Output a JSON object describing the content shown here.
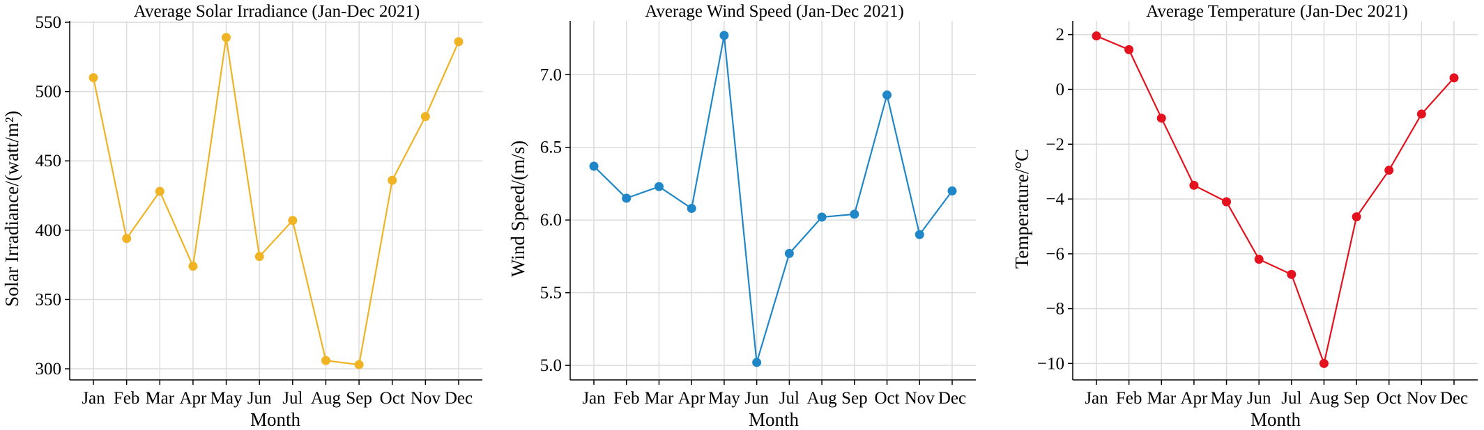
{
  "chart_data": [
    {
      "type": "line",
      "title": "Average Solar Irradiance (Jan-Dec 2021)",
      "xlabel": "Month",
      "ylabel": "Solar Irradiance/(watt/m²)",
      "categories": [
        "Jan",
        "Feb",
        "Mar",
        "Apr",
        "May",
        "Jun",
        "Jul",
        "Aug",
        "Sep",
        "Oct",
        "Nov",
        "Dec"
      ],
      "series": [
        {
          "values": [
            510,
            394,
            428,
            374,
            539,
            381,
            407,
            306,
            303,
            436,
            482,
            536
          ],
          "color": "#f0b323"
        }
      ],
      "ylim": [
        292,
        551
      ],
      "yticks": [
        300,
        350,
        400,
        450,
        500,
        550
      ],
      "ytick_labels": [
        "300",
        "350",
        "400",
        "450",
        "500",
        "550"
      ],
      "grid": true,
      "marker": "circle"
    },
    {
      "type": "line",
      "title": "Average Wind Speed (Jan-Dec 2021)",
      "xlabel": "Month",
      "ylabel": "Wind Speed/(m/s)",
      "categories": [
        "Jan",
        "Feb",
        "Mar",
        "Apr",
        "May",
        "Jun",
        "Jul",
        "Aug",
        "Sep",
        "Oct",
        "Nov",
        "Dec"
      ],
      "series": [
        {
          "values": [
            6.37,
            6.15,
            6.23,
            6.08,
            7.27,
            5.02,
            5.77,
            6.02,
            6.04,
            6.86,
            5.9,
            6.2
          ],
          "color": "#1f87c8"
        }
      ],
      "ylim": [
        4.9,
        7.37
      ],
      "yticks": [
        5.0,
        5.5,
        6.0,
        6.5,
        7.0
      ],
      "ytick_labels": [
        "5.0",
        "5.5",
        "6.0",
        "6.5",
        "7.0"
      ],
      "grid": true,
      "marker": "circle"
    },
    {
      "type": "line",
      "title": "Average Temperature (Jan-Dec 2021)",
      "xlabel": "Month",
      "ylabel": "Temperature/°C",
      "categories": [
        "Jan",
        "Feb",
        "Mar",
        "Apr",
        "May",
        "Jun",
        "Jul",
        "Aug",
        "Sep",
        "Oct",
        "Nov",
        "Dec"
      ],
      "series": [
        {
          "values": [
            1.95,
            1.45,
            -1.05,
            -3.5,
            -4.1,
            -6.2,
            -6.75,
            -10.0,
            -4.65,
            -2.95,
            -0.9,
            0.42
          ],
          "color": "#e3121e"
        }
      ],
      "ylim": [
        -10.6,
        2.5
      ],
      "yticks": [
        -10,
        -8,
        -6,
        -4,
        -2,
        0,
        2
      ],
      "ytick_labels": [
        "−10",
        "−8",
        "−6",
        "−4",
        "−2",
        "0",
        "2"
      ],
      "grid": true,
      "marker": "circle"
    }
  ]
}
